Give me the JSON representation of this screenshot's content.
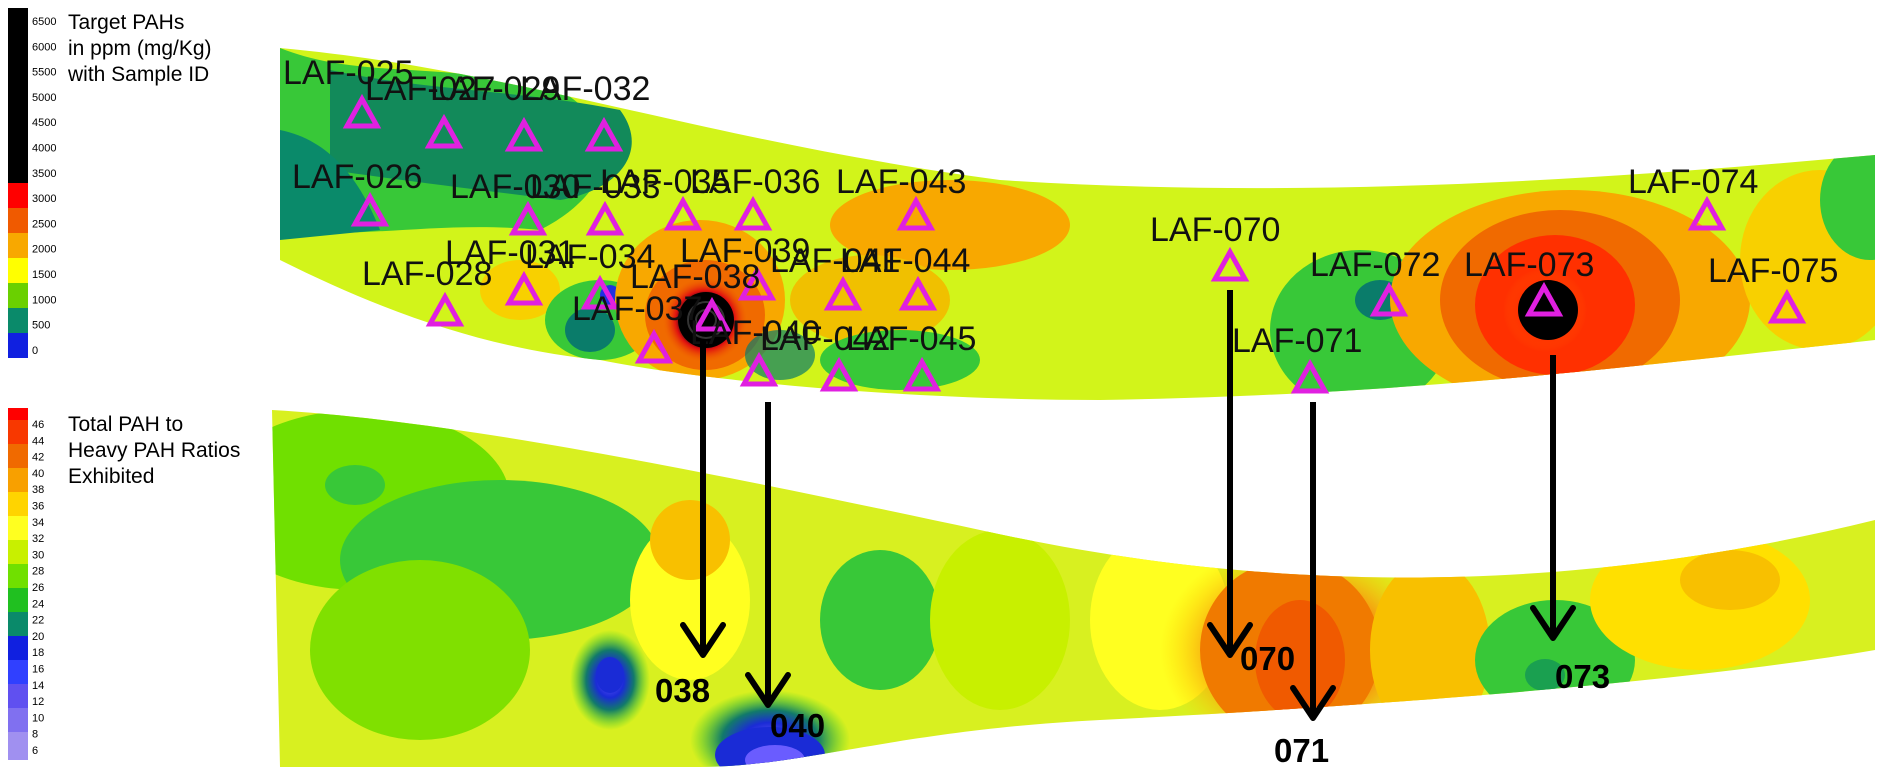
{
  "legend_target": {
    "title": "Target PAHs\nin ppm (mg/Kg)\nwith Sample ID",
    "ticks": [
      "6500",
      "6000",
      "5500",
      "5000",
      "4500",
      "4000",
      "3500",
      "3000",
      "2500",
      "2000",
      "1500",
      "1000",
      "500",
      "0"
    ]
  },
  "legend_ratio": {
    "title": "Total PAH to\nHeavy PAH Ratios\nExhibited",
    "ticks": [
      "46",
      "44",
      "42",
      "40",
      "38",
      "36",
      "34",
      "32",
      "30",
      "28",
      "26",
      "24",
      "22",
      "20",
      "18",
      "16",
      "14",
      "12",
      "10",
      "8",
      "6"
    ]
  },
  "samples": [
    {
      "id": "LAF-025"
    },
    {
      "id": "LAF-027"
    },
    {
      "id": "LAF-029"
    },
    {
      "id": "LAF-032"
    },
    {
      "id": "LAF-026"
    },
    {
      "id": "LAF-030"
    },
    {
      "id": "LAF-033"
    },
    {
      "id": "LAF-035"
    },
    {
      "id": "LAF-036"
    },
    {
      "id": "LAF-043"
    },
    {
      "id": "LAF-074"
    },
    {
      "id": "LAF-070"
    },
    {
      "id": "LAF-028"
    },
    {
      "id": "LAF-031"
    },
    {
      "id": "LAF-034"
    },
    {
      "id": "LAF-039"
    },
    {
      "id": "LAF-038"
    },
    {
      "id": "LAF-041"
    },
    {
      "id": "LAF-044"
    },
    {
      "id": "LAF-072"
    },
    {
      "id": "LAF-073"
    },
    {
      "id": "LAF-075"
    },
    {
      "id": "LAF-037"
    },
    {
      "id": "LAF-040"
    },
    {
      "id": "LAF-042"
    },
    {
      "id": "LAF-045"
    },
    {
      "id": "LAF-071"
    }
  ],
  "callouts": [
    {
      "label": "038"
    },
    {
      "label": "040"
    },
    {
      "label": "070"
    },
    {
      "label": "071"
    },
    {
      "label": "073"
    }
  ],
  "colors": {
    "marker": "#e020e0",
    "arrow": "#000000"
  }
}
